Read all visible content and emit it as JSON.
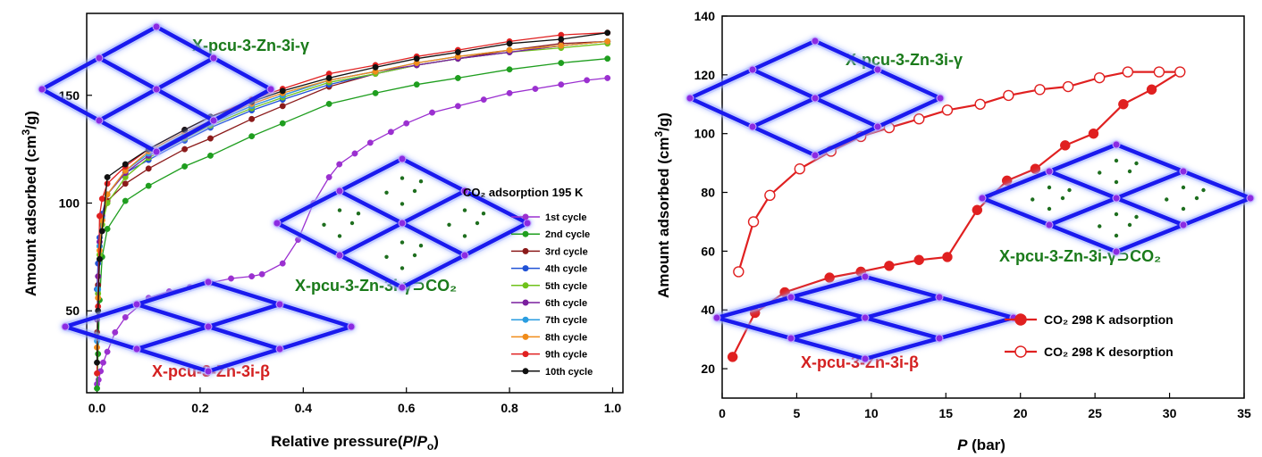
{
  "colors": {
    "framework_blue": "#1a1aee",
    "framework_glow": "#9fb0ff",
    "node_purple": "#8a2be2",
    "guest_green": "#1e6e1e",
    "annotation_green": "#1a7a1a",
    "annotation_red": "#d42020"
  },
  "chart_data": [
    {
      "type": "line",
      "xlabel": "Relative pressure(P/Po)",
      "ylabel": "Amount adsorbed (cm³/g)",
      "xlim": [
        -0.02,
        1.02
      ],
      "ylim": [
        12,
        188
      ],
      "xticks": [
        "0.0",
        "0.2",
        "0.4",
        "0.6",
        "0.8",
        "1.0"
      ],
      "yticks": [
        "50",
        "100",
        "150"
      ],
      "legend_title": "CO₂ adsorption 195 K",
      "legend_position": "right-center",
      "annotations": {
        "top": "X-pcu-3-Zn-3i-γ",
        "middle": "X-pcu-3-Zn-3i-γ⊃CO₂",
        "bottom": "X-pcu-3-Zn-3i-β"
      },
      "series": [
        {
          "name": "1st cycle",
          "color": "#9b30d0",
          "x": [
            0.0,
            0.003,
            0.007,
            0.012,
            0.02,
            0.035,
            0.055,
            0.1,
            0.14,
            0.18,
            0.22,
            0.26,
            0.3,
            0.32,
            0.36,
            0.39,
            0.42,
            0.45,
            0.47,
            0.5,
            0.53,
            0.57,
            0.6,
            0.65,
            0.7,
            0.75,
            0.8,
            0.85,
            0.9,
            0.95,
            0.99
          ],
          "y": [
            16,
            18,
            22,
            26,
            31,
            40,
            47,
            56,
            59,
            61,
            63,
            65,
            66,
            67,
            72,
            83,
            100,
            112,
            118,
            123,
            128,
            133,
            137,
            142,
            145,
            148,
            151,
            153,
            155,
            157,
            158
          ]
        },
        {
          "name": "2nd cycle",
          "color": "#1f9e1f",
          "x": [
            0.0,
            0.002,
            0.005,
            0.01,
            0.02,
            0.055,
            0.1,
            0.17,
            0.22,
            0.3,
            0.36,
            0.45,
            0.54,
            0.62,
            0.7,
            0.8,
            0.9,
            0.99
          ],
          "y": [
            14,
            30,
            55,
            75,
            88,
            101,
            108,
            117,
            122,
            131,
            137,
            146,
            151,
            155,
            158,
            162,
            165,
            167
          ]
        },
        {
          "name": "3rd cycle",
          "color": "#8b1a1a",
          "x": [
            0.0,
            0.002,
            0.005,
            0.01,
            0.02,
            0.055,
            0.1,
            0.17,
            0.22,
            0.3,
            0.36,
            0.45,
            0.54,
            0.62,
            0.7,
            0.8,
            0.9,
            0.99
          ],
          "y": [
            40,
            62,
            80,
            92,
            101,
            109,
            116,
            125,
            130,
            139,
            145,
            154,
            160,
            164,
            167,
            171,
            174,
            175
          ]
        },
        {
          "name": "4th cycle",
          "color": "#2052d6",
          "x": [
            0.0,
            0.002,
            0.005,
            0.01,
            0.02,
            0.055,
            0.1,
            0.17,
            0.22,
            0.3,
            0.36,
            0.45,
            0.54,
            0.62,
            0.7,
            0.8,
            0.9,
            0.99
          ],
          "y": [
            60,
            72,
            84,
            95,
            104,
            114,
            120,
            129,
            135,
            143,
            148,
            155,
            160,
            164,
            167,
            170,
            173,
            175
          ]
        },
        {
          "name": "5th cycle",
          "color": "#6fc21a",
          "x": [
            0.0,
            0.002,
            0.005,
            0.01,
            0.02,
            0.055,
            0.1,
            0.17,
            0.22,
            0.3,
            0.36,
            0.45,
            0.54,
            0.62,
            0.7,
            0.8,
            0.9,
            0.99
          ],
          "y": [
            38,
            58,
            76,
            90,
            100,
            112,
            121,
            130,
            136,
            144,
            149,
            156,
            160,
            164,
            167,
            170,
            172,
            174
          ]
        },
        {
          "name": "6th cycle",
          "color": "#7a1f9e",
          "x": [
            0.0,
            0.002,
            0.005,
            0.01,
            0.02,
            0.055,
            0.1,
            0.17,
            0.22,
            0.3,
            0.36,
            0.45,
            0.54,
            0.62,
            0.7,
            0.8,
            0.9,
            0.99
          ],
          "y": [
            46,
            66,
            82,
            94,
            104,
            114,
            122,
            131,
            137,
            145,
            150,
            157,
            161,
            164,
            167,
            170,
            173,
            175
          ]
        },
        {
          "name": "7th cycle",
          "color": "#2a9de0",
          "x": [
            0.0,
            0.002,
            0.005,
            0.01,
            0.02,
            0.055,
            0.1,
            0.17,
            0.22,
            0.3,
            0.36,
            0.45,
            0.54,
            0.62,
            0.7,
            0.8,
            0.9,
            0.99
          ],
          "y": [
            36,
            60,
            80,
            93,
            104,
            115,
            123,
            132,
            137,
            145,
            150,
            157,
            161,
            165,
            168,
            171,
            173,
            175
          ]
        },
        {
          "name": "8th cycle",
          "color": "#f08c1a",
          "x": [
            0.0,
            0.002,
            0.005,
            0.01,
            0.02,
            0.055,
            0.1,
            0.17,
            0.22,
            0.3,
            0.36,
            0.45,
            0.54,
            0.62,
            0.7,
            0.8,
            0.9,
            0.99
          ],
          "y": [
            33,
            56,
            78,
            92,
            104,
            115,
            124,
            133,
            138,
            146,
            151,
            157,
            161,
            165,
            168,
            171,
            173,
            175
          ]
        },
        {
          "name": "9th cycle",
          "color": "#e02020",
          "x": [
            0.0,
            0.002,
            0.005,
            0.01,
            0.02,
            0.055,
            0.1,
            0.17,
            0.22,
            0.3,
            0.36,
            0.45,
            0.54,
            0.62,
            0.7,
            0.8,
            0.9,
            0.99
          ],
          "y": [
            21,
            52,
            94,
            102,
            109,
            117,
            125,
            134,
            140,
            148,
            153,
            160,
            164,
            168,
            171,
            175,
            178,
            179
          ]
        },
        {
          "name": "10th cycle",
          "color": "#111111",
          "x": [
            0.0,
            0.002,
            0.005,
            0.01,
            0.02,
            0.055,
            0.1,
            0.17,
            0.22,
            0.3,
            0.36,
            0.45,
            0.54,
            0.62,
            0.7,
            0.8,
            0.9,
            0.99
          ],
          "y": [
            26,
            50,
            74,
            87,
            112,
            118,
            125,
            134,
            140,
            147,
            152,
            158,
            163,
            167,
            170,
            174,
            176,
            179
          ]
        }
      ]
    },
    {
      "type": "line",
      "xlabel": "P (bar)",
      "ylabel": "Amount adsorbed (cm³/g)",
      "xlim": [
        0,
        35
      ],
      "ylim": [
        10,
        140
      ],
      "xticks": [
        "0",
        "5",
        "10",
        "15",
        "20",
        "25",
        "30",
        "35"
      ],
      "yticks": [
        "20",
        "40",
        "60",
        "80",
        "100",
        "120",
        "140"
      ],
      "legend_position": "lower-right",
      "annotations": {
        "top": "X-pcu-3-Zn-3i-γ",
        "middle": "X-pcu-3-Zn-3i-γ⊃CO₂",
        "bottom": "X-pcu-3-Zn-3i-β"
      },
      "series": [
        {
          "name": "CO₂ 298 K adsorption",
          "color": "#e02020",
          "marker": "filled",
          "x": [
            0.7,
            2.2,
            4.2,
            7.2,
            9.3,
            11.2,
            13.2,
            15.1,
            17.1,
            19.1,
            21.0,
            23.0,
            24.9,
            26.9,
            28.8,
            30.7
          ],
          "y": [
            24,
            39,
            46,
            51,
            53,
            55,
            57,
            58,
            74,
            84,
            88,
            96,
            100,
            110,
            115,
            121
          ]
        },
        {
          "name": "CO₂ 298 K desorption",
          "color": "#e02020",
          "marker": "open",
          "x": [
            30.7,
            29.3,
            27.2,
            25.3,
            23.2,
            21.3,
            19.2,
            17.3,
            15.1,
            13.2,
            11.2,
            9.3,
            7.3,
            5.2,
            3.2,
            2.1,
            1.1
          ],
          "y": [
            121,
            121,
            121,
            119,
            116,
            115,
            113,
            110,
            108,
            105,
            102,
            99,
            94,
            88,
            79,
            70,
            53
          ]
        }
      ]
    }
  ]
}
